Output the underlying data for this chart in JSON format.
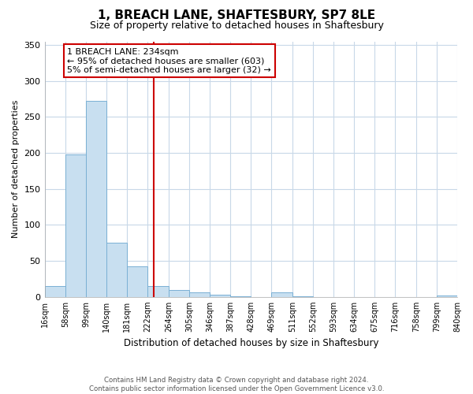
{
  "title": "1, BREACH LANE, SHAFTESBURY, SP7 8LE",
  "subtitle": "Size of property relative to detached houses in Shaftesbury",
  "xlabel": "Distribution of detached houses by size in Shaftesbury",
  "ylabel": "Number of detached properties",
  "bar_color": "#c8dff0",
  "bar_edge_color": "#7ab0d4",
  "bin_edges": [
    16,
    58,
    99,
    140,
    181,
    222,
    264,
    305,
    346,
    387,
    428,
    469,
    511,
    552,
    593,
    634,
    675,
    716,
    758,
    799,
    840
  ],
  "bin_labels": [
    "16sqm",
    "58sqm",
    "99sqm",
    "140sqm",
    "181sqm",
    "222sqm",
    "264sqm",
    "305sqm",
    "346sqm",
    "387sqm",
    "428sqm",
    "469sqm",
    "511sqm",
    "552sqm",
    "593sqm",
    "634sqm",
    "675sqm",
    "716sqm",
    "758sqm",
    "799sqm",
    "840sqm"
  ],
  "bar_heights": [
    15,
    198,
    272,
    75,
    42,
    15,
    10,
    6,
    3,
    1,
    0,
    6,
    1,
    0,
    0,
    0,
    0,
    0,
    0,
    2
  ],
  "vline_x": 234,
  "vline_color": "#cc0000",
  "annotation_title": "1 BREACH LANE: 234sqm",
  "annotation_line1": "← 95% of detached houses are smaller (603)",
  "annotation_line2": "5% of semi-detached houses are larger (32) →",
  "ylim": [
    0,
    355
  ],
  "yticks": [
    0,
    50,
    100,
    150,
    200,
    250,
    300,
    350
  ],
  "background_color": "#ffffff",
  "grid_color": "#c8d8e8",
  "footer_line1": "Contains HM Land Registry data © Crown copyright and database right 2024.",
  "footer_line2": "Contains public sector information licensed under the Open Government Licence v3.0."
}
